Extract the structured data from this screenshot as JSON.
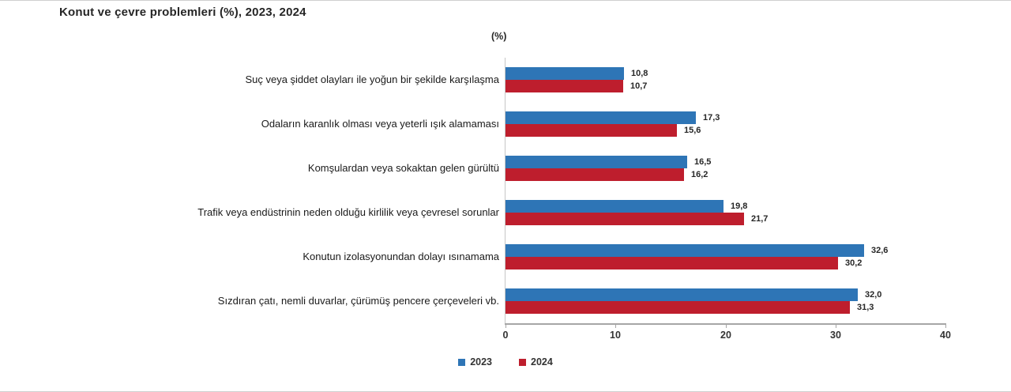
{
  "chart_data": {
    "type": "bar",
    "orientation": "horizontal",
    "title": "Konut ve çevre problemleri (%), 2023, 2024",
    "unit_label": "(%)",
    "categories": [
      "Suç veya şiddet olayları ile yoğun bir şekilde karşılaşma",
      "Odaların karanlık olması veya yeterli ışık alamaması",
      "Komşulardan veya sokaktan gelen gürültü",
      "Trafik veya endüstrinin neden olduğu kirlilik veya çevresel sorunlar",
      "Konutun izolasyonundan dolayı ısınamama",
      "Sızdıran çatı, nemli duvarlar, çürümüş pencere çerçeveleri vb."
    ],
    "series": [
      {
        "name": "2023",
        "color": "#2E75B6",
        "values": [
          10.8,
          17.3,
          16.5,
          19.8,
          32.6,
          32.0
        ],
        "value_labels": [
          "10,8",
          "17,3",
          "16,5",
          "19,8",
          "32,6",
          "32,0"
        ]
      },
      {
        "name": "2024",
        "color": "#BE1E2D",
        "values": [
          10.7,
          15.6,
          16.2,
          21.7,
          30.2,
          31.3
        ],
        "value_labels": [
          "10,7",
          "15,6",
          "16,2",
          "21,7",
          "30,2",
          "31,3"
        ]
      }
    ],
    "x_axis": {
      "min": 0,
      "max": 40,
      "ticks": [
        "0",
        "10",
        "20",
        "30",
        "40"
      ]
    },
    "legend_position": "bottom",
    "grid": false
  }
}
